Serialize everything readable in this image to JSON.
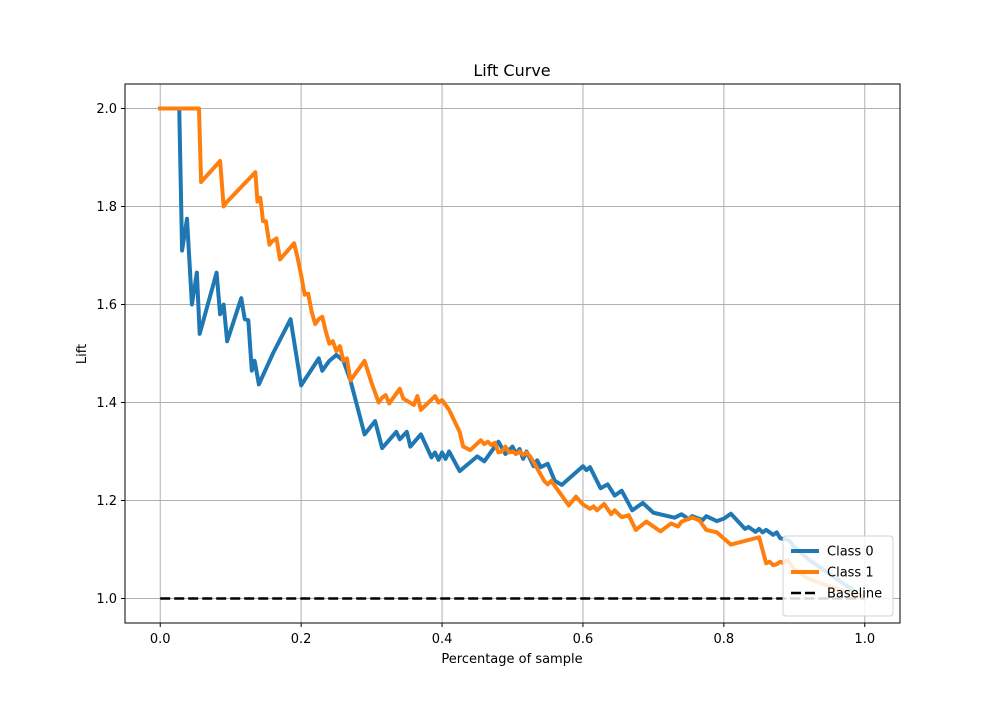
{
  "chart_data": {
    "type": "line",
    "title": "Lift Curve",
    "xlabel": "Percentage of sample",
    "ylabel": "Lift",
    "xlim": [
      -0.05,
      1.05
    ],
    "ylim": [
      0.95,
      2.05
    ],
    "xticks": [
      0.0,
      0.2,
      0.4,
      0.6,
      0.8,
      1.0
    ],
    "xtick_labels": [
      "0.0",
      "0.2",
      "0.4",
      "0.6",
      "0.8",
      "1.0"
    ],
    "yticks": [
      1.0,
      1.2,
      1.4,
      1.6,
      1.8,
      2.0
    ],
    "ytick_labels": [
      "1.0",
      "1.2",
      "1.4",
      "1.6",
      "1.8",
      "2.0"
    ],
    "grid": true,
    "legend_position": "lower-right",
    "series": [
      {
        "name": "Class 0",
        "color": "#1f77b4",
        "x": [
          0.0,
          0.027,
          0.031,
          0.038,
          0.045,
          0.052,
          0.056,
          0.08,
          0.085,
          0.09,
          0.095,
          0.115,
          0.12,
          0.125,
          0.13,
          0.134,
          0.14,
          0.16,
          0.185,
          0.2,
          0.225,
          0.23,
          0.24,
          0.25,
          0.26,
          0.27,
          0.28,
          0.29,
          0.305,
          0.315,
          0.335,
          0.34,
          0.35,
          0.355,
          0.37,
          0.385,
          0.39,
          0.395,
          0.4,
          0.405,
          0.41,
          0.425,
          0.45,
          0.46,
          0.48,
          0.49,
          0.5,
          0.505,
          0.51,
          0.515,
          0.52,
          0.53,
          0.535,
          0.54,
          0.55,
          0.56,
          0.57,
          0.6,
          0.605,
          0.61,
          0.625,
          0.635,
          0.645,
          0.655,
          0.67,
          0.685,
          0.7,
          0.73,
          0.74,
          0.75,
          0.755,
          0.77,
          0.775,
          0.79,
          0.8,
          0.81,
          0.83,
          0.835,
          0.845,
          0.85,
          0.855,
          0.86,
          0.87,
          0.875,
          0.88,
          0.89,
          0.895,
          0.9,
          0.92,
          0.94,
          0.96,
          0.98,
          1.0
        ],
        "values": [
          2.0,
          2.0,
          1.71,
          1.775,
          1.6,
          1.665,
          1.54,
          1.665,
          1.58,
          1.6,
          1.525,
          1.613,
          1.57,
          1.568,
          1.465,
          1.485,
          1.437,
          1.5,
          1.57,
          1.435,
          1.49,
          1.465,
          1.485,
          1.497,
          1.485,
          1.445,
          1.39,
          1.335,
          1.362,
          1.307,
          1.34,
          1.325,
          1.34,
          1.31,
          1.335,
          1.288,
          1.298,
          1.283,
          1.298,
          1.285,
          1.3,
          1.26,
          1.29,
          1.28,
          1.32,
          1.295,
          1.31,
          1.295,
          1.305,
          1.285,
          1.3,
          1.27,
          1.282,
          1.268,
          1.275,
          1.24,
          1.232,
          1.27,
          1.262,
          1.268,
          1.225,
          1.233,
          1.21,
          1.22,
          1.18,
          1.195,
          1.175,
          1.165,
          1.172,
          1.162,
          1.168,
          1.16,
          1.168,
          1.158,
          1.163,
          1.173,
          1.142,
          1.146,
          1.136,
          1.142,
          1.135,
          1.14,
          1.13,
          1.135,
          1.123,
          1.12,
          1.115,
          1.105,
          1.08,
          1.06,
          1.04,
          1.02,
          1.0
        ]
      },
      {
        "name": "Class 1",
        "color": "#ff7f0e",
        "x": [
          0.0,
          0.055,
          0.058,
          0.085,
          0.09,
          0.095,
          0.135,
          0.138,
          0.142,
          0.146,
          0.15,
          0.155,
          0.158,
          0.165,
          0.17,
          0.19,
          0.195,
          0.2,
          0.205,
          0.21,
          0.215,
          0.22,
          0.225,
          0.23,
          0.235,
          0.24,
          0.245,
          0.25,
          0.255,
          0.26,
          0.265,
          0.27,
          0.29,
          0.3,
          0.31,
          0.315,
          0.32,
          0.325,
          0.34,
          0.345,
          0.36,
          0.365,
          0.37,
          0.39,
          0.395,
          0.4,
          0.405,
          0.41,
          0.425,
          0.43,
          0.44,
          0.455,
          0.46,
          0.465,
          0.47,
          0.475,
          0.48,
          0.485,
          0.49,
          0.495,
          0.5,
          0.505,
          0.51,
          0.515,
          0.52,
          0.525,
          0.53,
          0.545,
          0.55,
          0.555,
          0.58,
          0.59,
          0.6,
          0.61,
          0.615,
          0.62,
          0.63,
          0.64,
          0.645,
          0.655,
          0.665,
          0.675,
          0.69,
          0.71,
          0.725,
          0.735,
          0.74,
          0.755,
          0.765,
          0.775,
          0.79,
          0.81,
          0.85,
          0.86,
          0.865,
          0.87,
          0.875,
          0.88,
          0.885,
          0.89,
          0.9,
          0.92,
          0.94,
          0.96,
          0.98,
          1.0
        ],
        "values": [
          2.0,
          2.0,
          1.85,
          1.893,
          1.8,
          1.81,
          1.87,
          1.81,
          1.818,
          1.77,
          1.77,
          1.722,
          1.728,
          1.735,
          1.692,
          1.725,
          1.695,
          1.66,
          1.62,
          1.622,
          1.585,
          1.56,
          1.57,
          1.575,
          1.545,
          1.52,
          1.525,
          1.505,
          1.515,
          1.485,
          1.49,
          1.445,
          1.485,
          1.44,
          1.4,
          1.41,
          1.415,
          1.398,
          1.428,
          1.408,
          1.395,
          1.413,
          1.385,
          1.413,
          1.4,
          1.405,
          1.395,
          1.385,
          1.34,
          1.31,
          1.303,
          1.323,
          1.315,
          1.32,
          1.313,
          1.318,
          1.298,
          1.3,
          1.31,
          1.298,
          1.3,
          1.295,
          1.3,
          1.293,
          1.298,
          1.29,
          1.278,
          1.24,
          1.233,
          1.24,
          1.19,
          1.208,
          1.192,
          1.183,
          1.188,
          1.18,
          1.193,
          1.172,
          1.18,
          1.166,
          1.17,
          1.14,
          1.157,
          1.137,
          1.153,
          1.147,
          1.157,
          1.165,
          1.16,
          1.14,
          1.135,
          1.11,
          1.125,
          1.072,
          1.075,
          1.068,
          1.07,
          1.075,
          1.072,
          1.078,
          1.06,
          1.04,
          1.03,
          1.02,
          1.01,
          1.0
        ]
      },
      {
        "name": "Baseline",
        "color": "#000000",
        "dashed": true,
        "x": [
          0.0,
          1.0
        ],
        "values": [
          1.0,
          1.0
        ]
      }
    ]
  }
}
